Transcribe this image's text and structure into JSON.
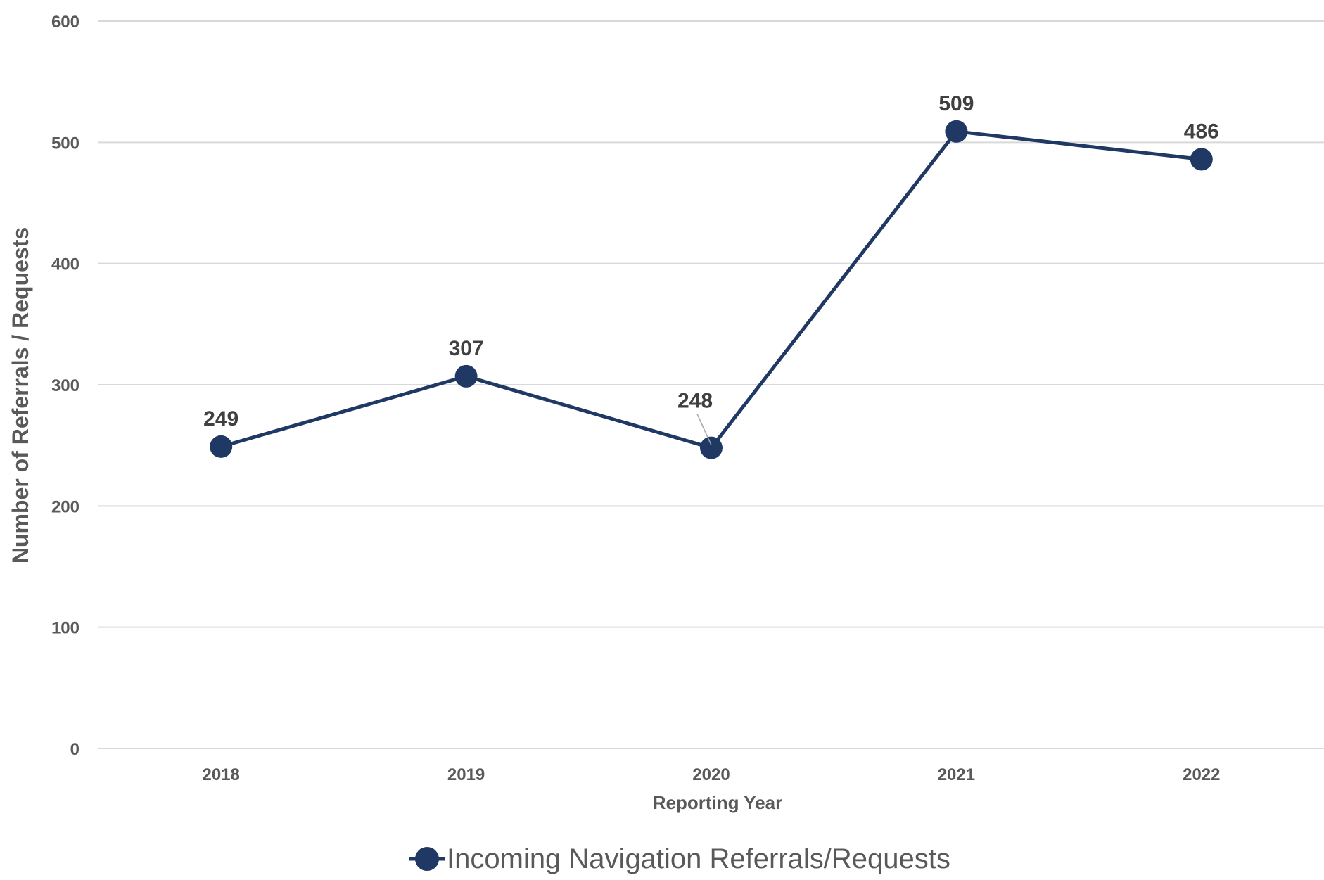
{
  "chart_data": {
    "type": "line",
    "categories": [
      "2018",
      "2019",
      "2020",
      "2021",
      "2022"
    ],
    "series": [
      {
        "name": "Incoming Navigation Referrals/Requests",
        "values": [
          249,
          307,
          248,
          509,
          486
        ]
      }
    ],
    "xlabel": "Reporting Year",
    "ylabel": "Number of Referrals / Requests",
    "ylim": [
      0,
      600
    ],
    "yticks": [
      0,
      100,
      200,
      300,
      400,
      500,
      600
    ],
    "grid": true,
    "legend": "bottom-center",
    "data_labels": [
      "249",
      "307",
      "248",
      "509",
      "486"
    ],
    "colors": {
      "series": "#1f3864",
      "grid": "#d9d9d9",
      "axis_text": "#595959",
      "data_label": "#404040"
    }
  }
}
